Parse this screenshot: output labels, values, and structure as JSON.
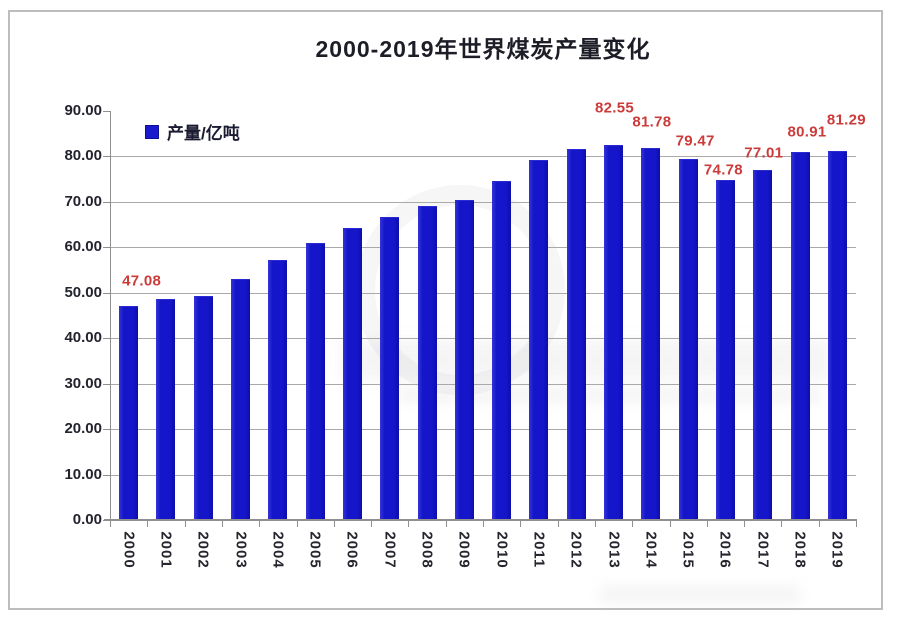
{
  "chart_data": {
    "type": "bar",
    "title": "2000-2019年世界煤炭产量变化",
    "legend": {
      "label": "产量/亿吨",
      "position": "top-left-inside"
    },
    "categories": [
      "2000",
      "2001",
      "2002",
      "2003",
      "2004",
      "2005",
      "2006",
      "2007",
      "2008",
      "2009",
      "2010",
      "2011",
      "2012",
      "2013",
      "2014",
      "2015",
      "2016",
      "2017",
      "2018",
      "2019"
    ],
    "series": [
      {
        "name": "产量/亿吨",
        "values": [
          47.08,
          48.7,
          49.4,
          53.0,
          57.2,
          60.9,
          64.2,
          66.6,
          69.2,
          70.4,
          74.7,
          79.3,
          81.7,
          82.55,
          81.78,
          79.47,
          74.78,
          77.01,
          80.91,
          81.29
        ]
      }
    ],
    "data_labels": {
      "2000": "47.08",
      "2013": "82.55",
      "2014": "81.78",
      "2015": "79.47",
      "2016": "74.78",
      "2017": "77.01",
      "2018": "80.91",
      "2019": "81.29"
    },
    "xlabel": "",
    "ylabel": "",
    "ylim": [
      0,
      90
    ],
    "ytick_step": 10,
    "yticks": [
      "90.00",
      "80.00",
      "70.00",
      "60.00",
      "50.00",
      "40.00",
      "30.00",
      "20.00",
      "10.00",
      "0.00"
    ],
    "grid": "horizontal",
    "legend_position": "top-left-inside",
    "colors": {
      "bar": "#1515c9",
      "data_label": "#cb3b3a",
      "grid": "#a9a9a9",
      "axis": "#8f8f8f",
      "title": "#1d1d28",
      "tick_text": "#26262e",
      "frame_border": "#bdbdbd"
    }
  }
}
